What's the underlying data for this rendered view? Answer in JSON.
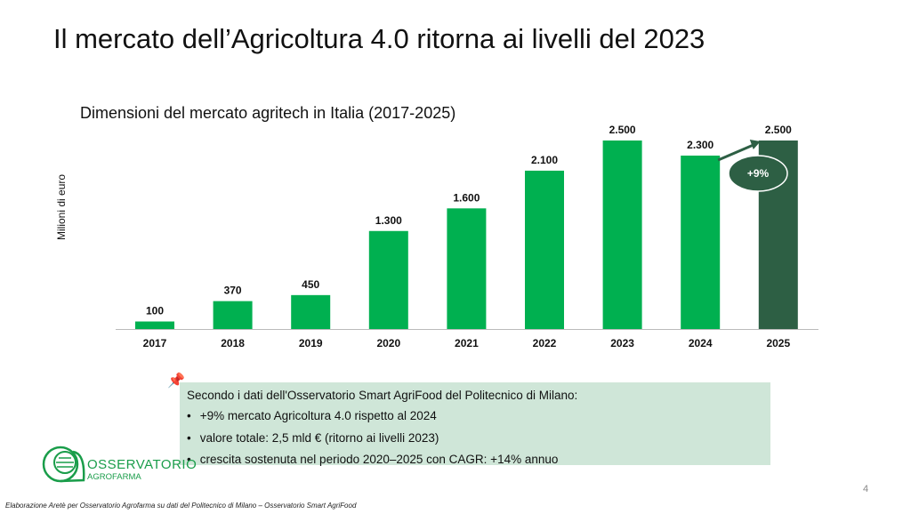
{
  "title": "Il mercato dell’Agricoltura 4.0 ritorna ai livelli del 2023",
  "chart_data": {
    "type": "bar",
    "title": "Dimensioni del mercato agritech in Italia (2017-2025)",
    "ylabel": "Milioni di euro",
    "categories": [
      "2017",
      "2018",
      "2019",
      "2020",
      "2021",
      "2022",
      "2023",
      "2024",
      "2025"
    ],
    "values": [
      100,
      370,
      450,
      1300,
      1600,
      2100,
      2500,
      2300,
      2500
    ],
    "data_labels": [
      "100",
      "370",
      "450",
      "1.300",
      "1.600",
      "2.100",
      "2.500",
      "2.300",
      "2.500"
    ],
    "ylim": [
      0,
      2500
    ],
    "grid": false,
    "colors": {
      "bar": "#00b050",
      "highlight": "#2d5f44"
    },
    "annotation": "+9%"
  },
  "textbox": {
    "intro": "Secondo i dati dell'Osservatorio Smart AgriFood del Politecnico di Milano:",
    "bullets": [
      "+9% mercato Agricoltura 4.0 rispetto al 2024",
      "valore totale: 2,5 mld € (ritorno ai livelli 2023)",
      "crescita sostenuta nel periodo 2020–2025 con CAGR: +14% annuo"
    ]
  },
  "logo": {
    "line1": "OSSERVATORIO",
    "line2": "AGROFARMA"
  },
  "footer": "Elaborazione Aretè per Osservatorio Agrofarma su dati del Politecnico di Milano – Osservatorio Smart AgriFood",
  "page_number": "4"
}
